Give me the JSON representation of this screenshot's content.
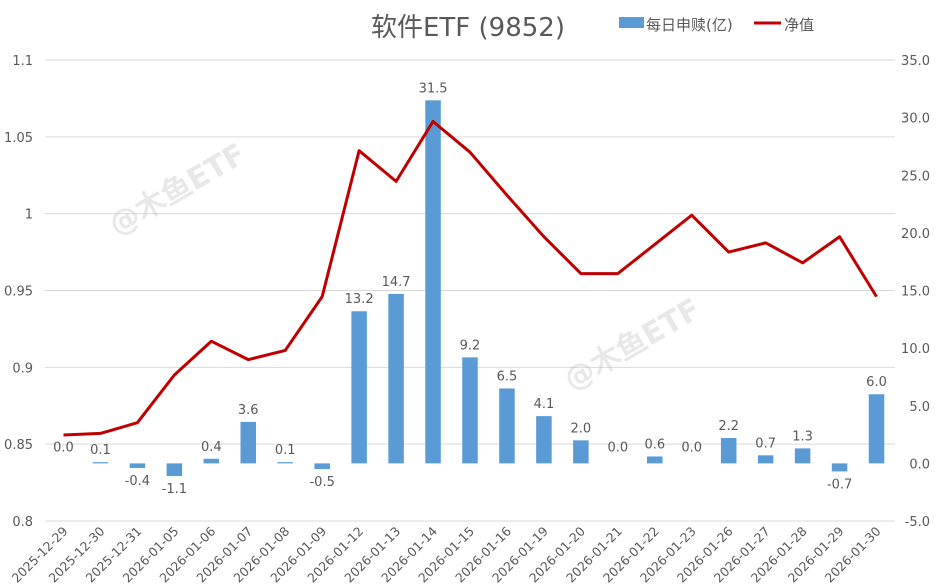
{
  "chart_data": {
    "type": "bar+line",
    "title": "软件ETF (9852)",
    "categories": [
      "2025-12-29",
      "2025-12-30",
      "2025-12-31",
      "2026-01-05",
      "2026-01-06",
      "2026-01-07",
      "2026-01-08",
      "2026-01-09",
      "2026-01-12",
      "2026-01-13",
      "2026-01-14",
      "2026-01-15",
      "2026-01-16",
      "2026-01-19",
      "2026-01-20",
      "2026-01-21",
      "2026-01-22",
      "2026-01-23",
      "2026-01-26",
      "2026-01-27",
      "2026-01-28",
      "2026-01-29",
      "2026-01-30"
    ],
    "series": [
      {
        "name": "每日申赎(亿)",
        "type": "bar",
        "axis": "right",
        "color": "#5B9BD5",
        "values": [
          0.0,
          0.1,
          -0.4,
          -1.1,
          0.4,
          3.6,
          0.1,
          -0.5,
          13.2,
          14.7,
          31.5,
          9.2,
          6.5,
          4.1,
          2.0,
          0.0,
          0.6,
          0.0,
          2.2,
          0.7,
          1.3,
          -0.7,
          6.0
        ],
        "labels": [
          "0.0",
          "0.1",
          "-0.4",
          "-1.1",
          "0.4",
          "3.6",
          "0.1",
          "-0.5",
          "13.2",
          "14.7",
          "31.5",
          "9.2",
          "6.5",
          "4.1",
          "2.0",
          "0.0",
          "0.6",
          "0.0",
          "2.2",
          "0.7",
          "1.3",
          "-0.7",
          "6.0"
        ]
      },
      {
        "name": "净值",
        "type": "line",
        "axis": "left",
        "color": "#C00000",
        "values": [
          0.856,
          0.857,
          0.864,
          0.895,
          0.917,
          0.905,
          0.911,
          0.946,
          1.041,
          1.021,
          1.06,
          1.04,
          1.012,
          0.985,
          0.961,
          0.961,
          0.98,
          0.999,
          0.975,
          0.981,
          0.968,
          0.985,
          0.946
        ]
      }
    ],
    "left_axis": {
      "ylim": [
        0.8,
        1.1
      ],
      "ticks": [
        "0.8",
        "0.85",
        "0.9",
        "0.95",
        "1",
        "1.05",
        "1.1"
      ]
    },
    "right_axis": {
      "ylim": [
        -5,
        35
      ],
      "ticks": [
        "-5.0",
        "0.0",
        "5.0",
        "10.0",
        "15.0",
        "20.0",
        "25.0",
        "30.0",
        "35.0"
      ]
    },
    "grid": true,
    "legend": "top-right",
    "watermark": "@木鱼ETF"
  }
}
